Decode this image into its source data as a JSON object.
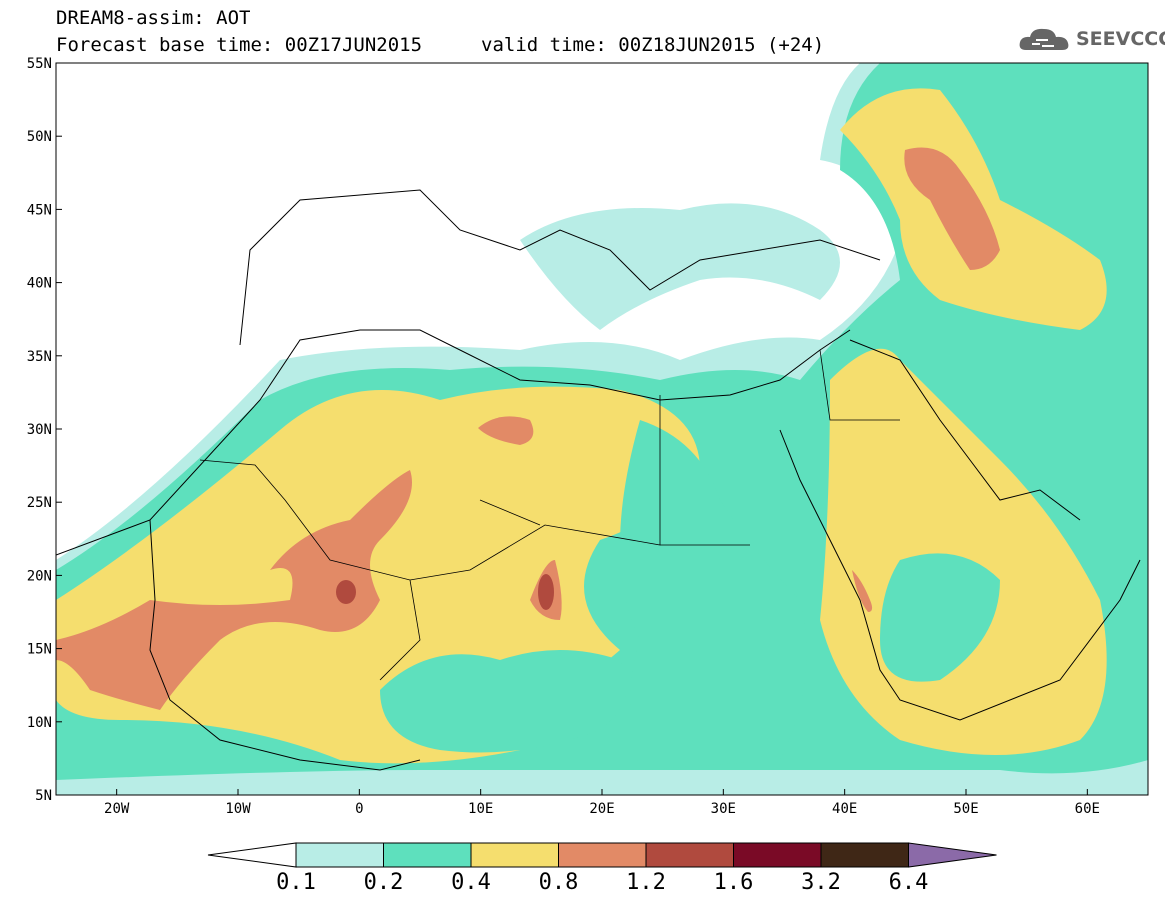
{
  "title": {
    "line1": "DREAM8-assim: AOT",
    "line2": "Forecast base time: 00Z17JUN2015",
    "valid": "valid time: 00Z18JUN2015 (+24)"
  },
  "logo": {
    "text": "SEEVCCC",
    "icon": "cloud-logo-icon"
  },
  "map": {
    "lat_labels": [
      "55N",
      "50N",
      "45N",
      "40N",
      "35N",
      "30N",
      "25N",
      "20N",
      "15N",
      "10N",
      "5N"
    ],
    "lon_labels": [
      "20W",
      "10W",
      "0",
      "10E",
      "20E",
      "30E",
      "40E",
      "50E",
      "60E"
    ],
    "lat_range": [
      5,
      55
    ],
    "lon_range": [
      -25,
      65
    ]
  },
  "colorbar": {
    "labels": [
      "0.1",
      "0.2",
      "0.4",
      "0.8",
      "1.2",
      "1.6",
      "3.2",
      "6.4"
    ],
    "colors": [
      "#b8ede6",
      "#5ee0bd",
      "#f5de6e",
      "#e28a66",
      "#b04a3e",
      "#7a0a26",
      "#3f2716",
      "#8b6aa8"
    ]
  }
}
